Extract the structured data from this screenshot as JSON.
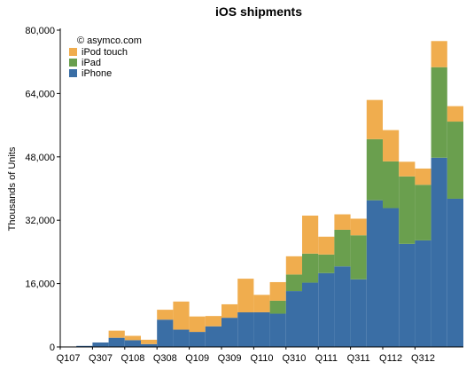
{
  "chart_data": {
    "type": "bar",
    "stacked": true,
    "title": "iOS shipments",
    "annotation": "© asymco.com",
    "xlabel": "",
    "ylabel": "Thousands of Units",
    "ylim": [
      0,
      80000
    ],
    "yticks": [
      "0",
      "16,000",
      "32,000",
      "48,000",
      "64,000",
      "80,000"
    ],
    "ytick_values": [
      0,
      16000,
      32000,
      48000,
      64000,
      80000
    ],
    "categories": [
      "Q107",
      "Q207",
      "Q307",
      "Q407",
      "Q108",
      "Q208",
      "Q308",
      "Q408",
      "Q109",
      "Q209",
      "Q309",
      "Q409",
      "Q110",
      "Q210",
      "Q310",
      "Q410",
      "Q111",
      "Q211",
      "Q311",
      "Q411",
      "Q112",
      "Q212",
      "Q312",
      "Q412",
      "Q113"
    ],
    "xtick_labels": [
      "Q107",
      "Q307",
      "Q108",
      "Q308",
      "Q109",
      "Q309",
      "Q110",
      "Q310",
      "Q111",
      "Q311",
      "Q112",
      "Q312"
    ],
    "grid": false,
    "legend_position": "top-left",
    "series": [
      {
        "name": "iPhone",
        "color": "#3a6ea5",
        "values": [
          0,
          270,
          1119,
          2315,
          1703,
          717,
          6892,
          4363,
          3793,
          5208,
          7367,
          8737,
          8752,
          8398,
          14102,
          16235,
          18650,
          20340,
          17070,
          37044,
          35064,
          26028,
          26910,
          47789,
          37430
        ]
      },
      {
        "name": "iPad",
        "color": "#6a9f4e",
        "values": [
          0,
          0,
          0,
          0,
          0,
          0,
          0,
          0,
          0,
          0,
          0,
          0,
          0,
          3270,
          4190,
          7330,
          4690,
          9250,
          11120,
          15430,
          11800,
          17040,
          14040,
          22860,
          19480
        ]
      },
      {
        "name": "iPod touch",
        "color": "#f0ad4e",
        "values": [
          0,
          0,
          0,
          1800,
          1100,
          1100,
          2500,
          7100,
          3900,
          2600,
          3400,
          8500,
          4400,
          4700,
          4600,
          9600,
          4500,
          3900,
          4200,
          9900,
          7900,
          3700,
          4100,
          6600,
          3900
        ]
      }
    ]
  }
}
